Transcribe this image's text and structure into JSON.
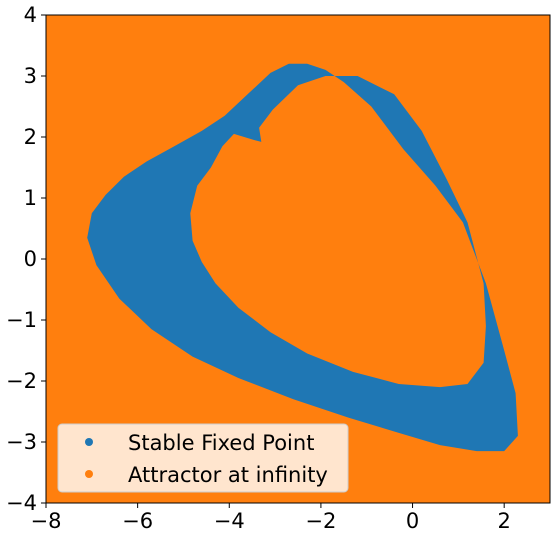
{
  "chart_data": {
    "type": "area",
    "title": "",
    "xlabel": "",
    "ylabel": "",
    "xlim": [
      -8,
      3
    ],
    "ylim": [
      -4,
      4
    ],
    "xticks": [
      -8,
      -6,
      -4,
      -2,
      0,
      2
    ],
    "yticks": [
      -4,
      -3,
      -2,
      -1,
      0,
      1,
      2,
      3,
      4
    ],
    "grid": false,
    "legend_position": "lower-left",
    "background_class": "Attractor at infinity",
    "series": [
      {
        "name": "Stable Fixed Point",
        "color": "#1f77b4",
        "outer_boundary": [
          [
            -7.1,
            0.35
          ],
          [
            -7.0,
            0.75
          ],
          [
            -6.7,
            1.05
          ],
          [
            -6.3,
            1.35
          ],
          [
            -5.8,
            1.6
          ],
          [
            -5.2,
            1.85
          ],
          [
            -4.6,
            2.1
          ],
          [
            -4.1,
            2.35
          ],
          [
            -3.6,
            2.7
          ],
          [
            -3.1,
            3.05
          ],
          [
            -2.7,
            3.2
          ],
          [
            -2.3,
            3.2
          ],
          [
            -1.9,
            3.1
          ],
          [
            -1.5,
            2.9
          ],
          [
            -0.9,
            2.5
          ],
          [
            -0.2,
            1.8
          ],
          [
            0.5,
            1.2
          ],
          [
            1.1,
            0.6
          ],
          [
            1.6,
            -0.4
          ],
          [
            2.0,
            -1.5
          ],
          [
            2.25,
            -2.2
          ],
          [
            2.3,
            -2.9
          ],
          [
            2.0,
            -3.15
          ],
          [
            1.4,
            -3.15
          ],
          [
            0.6,
            -3.05
          ],
          [
            -0.3,
            -2.85
          ],
          [
            -1.4,
            -2.6
          ],
          [
            -2.6,
            -2.3
          ],
          [
            -3.8,
            -1.95
          ],
          [
            -4.8,
            -1.6
          ],
          [
            -5.7,
            -1.15
          ],
          [
            -6.4,
            -0.65
          ],
          [
            -6.9,
            -0.1
          ],
          [
            -7.1,
            0.35
          ]
        ],
        "inner_boundary": [
          [
            -4.4,
            1.5
          ],
          [
            -4.7,
            1.2
          ],
          [
            -4.85,
            0.75
          ],
          [
            -4.8,
            0.3
          ],
          [
            -4.6,
            -0.05
          ],
          [
            -4.3,
            -0.4
          ],
          [
            -3.8,
            -0.8
          ],
          [
            -3.1,
            -1.2
          ],
          [
            -2.3,
            -1.55
          ],
          [
            -1.3,
            -1.85
          ],
          [
            -0.3,
            -2.05
          ],
          [
            0.6,
            -2.1
          ],
          [
            1.2,
            -2.05
          ],
          [
            1.55,
            -1.7
          ],
          [
            1.6,
            -1.1
          ],
          [
            1.55,
            -0.4
          ],
          [
            1.2,
            0.6
          ],
          [
            0.75,
            1.3
          ],
          [
            0.2,
            2.1
          ],
          [
            -0.4,
            2.7
          ],
          [
            -1.2,
            3.0
          ],
          [
            -1.9,
            3.0
          ],
          [
            -2.5,
            2.85
          ],
          [
            -3.05,
            2.45
          ],
          [
            -3.35,
            2.15
          ],
          [
            -3.3,
            1.92
          ],
          [
            -3.55,
            1.8
          ],
          [
            -3.3,
            1.92
          ],
          [
            -3.45,
            1.95
          ],
          [
            -3.9,
            2.05
          ],
          [
            -4.15,
            1.85
          ],
          [
            -4.4,
            1.5
          ]
        ]
      },
      {
        "name": "Attractor at infinity",
        "color": "#ff7f0e",
        "region": "everything outside the blue band"
      }
    ]
  }
}
